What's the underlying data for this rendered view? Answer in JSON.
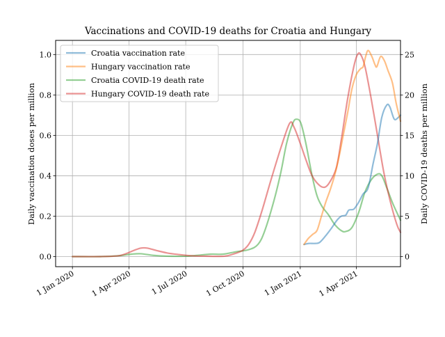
{
  "chart_data": {
    "type": "line",
    "title": "Vaccinations and COVID-19 deaths for Croatia and Hungary",
    "ylabel_left": "Daily vaccination doses per million",
    "ylabel_right": "Daily COVID-19 deaths per million",
    "xlim": [
      "2019-12-05",
      "2021-06-11"
    ],
    "ylim_left": [
      -0.05,
      1.07
    ],
    "ylim_right": [
      -1.25,
      26.75
    ],
    "x_ticks": [
      "2020-01-01",
      "2020-04-01",
      "2020-07-01",
      "2020-10-01",
      "2021-01-01",
      "2021-04-01"
    ],
    "x_tick_labels": [
      "1 Jan 2020",
      "1 Apr 2020",
      "1 Jul 2020",
      "1 Oct 2020",
      "1 Jan 2021",
      "1 Apr 2021"
    ],
    "y_ticks_left": [
      0.0,
      0.2,
      0.4,
      0.6,
      0.8,
      1.0
    ],
    "y_tick_labels_left": [
      "0.0",
      "0.2",
      "0.4",
      "0.6",
      "0.8",
      "1.0"
    ],
    "y_ticks_right": [
      0,
      5,
      10,
      15,
      20,
      25
    ],
    "y_tick_labels_right": [
      "0",
      "5",
      "10",
      "15",
      "20",
      "25"
    ],
    "grid": true,
    "legend_position": "top-left",
    "series": [
      {
        "name": "Croatia vaccination rate",
        "axis": "left",
        "color": "#1f77b4",
        "points": [
          [
            "2021-01-07",
            0.06
          ],
          [
            "2021-01-15",
            0.065
          ],
          [
            "2021-01-25",
            0.065
          ],
          [
            "2021-02-01",
            0.07
          ],
          [
            "2021-02-10",
            0.1
          ],
          [
            "2021-02-20",
            0.14
          ],
          [
            "2021-03-01",
            0.18
          ],
          [
            "2021-03-08",
            0.2
          ],
          [
            "2021-03-15",
            0.205
          ],
          [
            "2021-03-20",
            0.23
          ],
          [
            "2021-03-28",
            0.235
          ],
          [
            "2021-04-05",
            0.27
          ],
          [
            "2021-04-12",
            0.31
          ],
          [
            "2021-04-20",
            0.34
          ],
          [
            "2021-04-28",
            0.46
          ],
          [
            "2021-05-05",
            0.56
          ],
          [
            "2021-05-12",
            0.69
          ],
          [
            "2021-05-20",
            0.75
          ],
          [
            "2021-05-25",
            0.74
          ],
          [
            "2021-06-01",
            0.68
          ],
          [
            "2021-06-08",
            0.69
          ],
          [
            "2021-06-11",
            0.7
          ]
        ]
      },
      {
        "name": "Hungary vaccination rate",
        "axis": "left",
        "color": "#ff7f0e",
        "points": [
          [
            "2021-01-07",
            0.06
          ],
          [
            "2021-01-14",
            0.09
          ],
          [
            "2021-01-21",
            0.11
          ],
          [
            "2021-01-28",
            0.13
          ],
          [
            "2021-02-04",
            0.2
          ],
          [
            "2021-02-11",
            0.27
          ],
          [
            "2021-02-18",
            0.33
          ],
          [
            "2021-02-25",
            0.4
          ],
          [
            "2021-03-04",
            0.49
          ],
          [
            "2021-03-11",
            0.6
          ],
          [
            "2021-03-18",
            0.71
          ],
          [
            "2021-03-25",
            0.83
          ],
          [
            "2021-04-01",
            0.9
          ],
          [
            "2021-04-08",
            0.93
          ],
          [
            "2021-04-12",
            0.94
          ],
          [
            "2021-04-16",
            0.99
          ],
          [
            "2021-04-20",
            1.02
          ],
          [
            "2021-04-26",
            0.99
          ],
          [
            "2021-05-01",
            0.95
          ],
          [
            "2021-05-04",
            0.94
          ],
          [
            "2021-05-10",
            0.99
          ],
          [
            "2021-05-16",
            0.97
          ],
          [
            "2021-05-22",
            0.92
          ],
          [
            "2021-05-29",
            0.86
          ],
          [
            "2021-06-04",
            0.76
          ],
          [
            "2021-06-11",
            0.67
          ]
        ]
      },
      {
        "name": "Croatia COVID-19 death rate",
        "axis": "right",
        "color": "#2ca02c",
        "points": [
          [
            "2020-01-01",
            0.0
          ],
          [
            "2020-02-15",
            0.0
          ],
          [
            "2020-03-15",
            0.1
          ],
          [
            "2020-04-05",
            0.3
          ],
          [
            "2020-04-20",
            0.35
          ],
          [
            "2020-05-10",
            0.15
          ],
          [
            "2020-06-01",
            0.05
          ],
          [
            "2020-07-01",
            0.05
          ],
          [
            "2020-07-20",
            0.15
          ],
          [
            "2020-08-10",
            0.3
          ],
          [
            "2020-08-30",
            0.3
          ],
          [
            "2020-09-20",
            0.6
          ],
          [
            "2020-10-10",
            0.85
          ],
          [
            "2020-10-25",
            1.5
          ],
          [
            "2020-11-05",
            3.2
          ],
          [
            "2020-11-20",
            7.0
          ],
          [
            "2020-12-01",
            10.5
          ],
          [
            "2020-12-10",
            14.0
          ],
          [
            "2020-12-20",
            16.5
          ],
          [
            "2020-12-26",
            17.0
          ],
          [
            "2021-01-02",
            16.5
          ],
          [
            "2021-01-10",
            14.0
          ],
          [
            "2021-01-20",
            10.0
          ],
          [
            "2021-01-28",
            7.5
          ],
          [
            "2021-02-05",
            6.2
          ],
          [
            "2021-02-15",
            5.2
          ],
          [
            "2021-02-25",
            4.0
          ],
          [
            "2021-03-08",
            3.2
          ],
          [
            "2021-03-15",
            3.1
          ],
          [
            "2021-03-25",
            3.6
          ],
          [
            "2021-04-05",
            5.5
          ],
          [
            "2021-04-15",
            8.0
          ],
          [
            "2021-04-25",
            9.5
          ],
          [
            "2021-05-05",
            10.2
          ],
          [
            "2021-05-12",
            10.0
          ],
          [
            "2021-05-20",
            8.5
          ],
          [
            "2021-05-30",
            6.5
          ],
          [
            "2021-06-11",
            4.5
          ]
        ]
      },
      {
        "name": "Hungary COVID-19 death rate",
        "axis": "right",
        "color": "#d62728",
        "points": [
          [
            "2020-01-01",
            0.0
          ],
          [
            "2020-02-15",
            0.0
          ],
          [
            "2020-03-15",
            0.1
          ],
          [
            "2020-03-30",
            0.45
          ],
          [
            "2020-04-10",
            0.8
          ],
          [
            "2020-04-20",
            1.05
          ],
          [
            "2020-04-30",
            1.05
          ],
          [
            "2020-05-15",
            0.75
          ],
          [
            "2020-06-01",
            0.45
          ],
          [
            "2020-06-20",
            0.25
          ],
          [
            "2020-07-10",
            0.1
          ],
          [
            "2020-08-01",
            0.05
          ],
          [
            "2020-09-01",
            0.05
          ],
          [
            "2020-09-15",
            0.3
          ],
          [
            "2020-09-30",
            0.75
          ],
          [
            "2020-10-10",
            1.5
          ],
          [
            "2020-10-20",
            3.0
          ],
          [
            "2020-11-01",
            5.8
          ],
          [
            "2020-11-15",
            9.5
          ],
          [
            "2020-12-01",
            13.5
          ],
          [
            "2020-12-15",
            16.5
          ],
          [
            "2020-12-22",
            16.0
          ],
          [
            "2021-01-01",
            14.0
          ],
          [
            "2021-01-10",
            12.0
          ],
          [
            "2021-01-20",
            10.0
          ],
          [
            "2021-02-01",
            8.8
          ],
          [
            "2021-02-10",
            8.6
          ],
          [
            "2021-02-18",
            9.3
          ],
          [
            "2021-02-28",
            11.0
          ],
          [
            "2021-03-08",
            14.5
          ],
          [
            "2021-03-18",
            19.5
          ],
          [
            "2021-03-28",
            23.5
          ],
          [
            "2021-04-03",
            25.0
          ],
          [
            "2021-04-08",
            25.0
          ],
          [
            "2021-04-15",
            23.5
          ],
          [
            "2021-04-25",
            19.5
          ],
          [
            "2021-05-05",
            15.0
          ],
          [
            "2021-05-15",
            10.5
          ],
          [
            "2021-05-25",
            7.0
          ],
          [
            "2021-06-05",
            4.0
          ],
          [
            "2021-06-11",
            3.0
          ]
        ]
      }
    ]
  }
}
